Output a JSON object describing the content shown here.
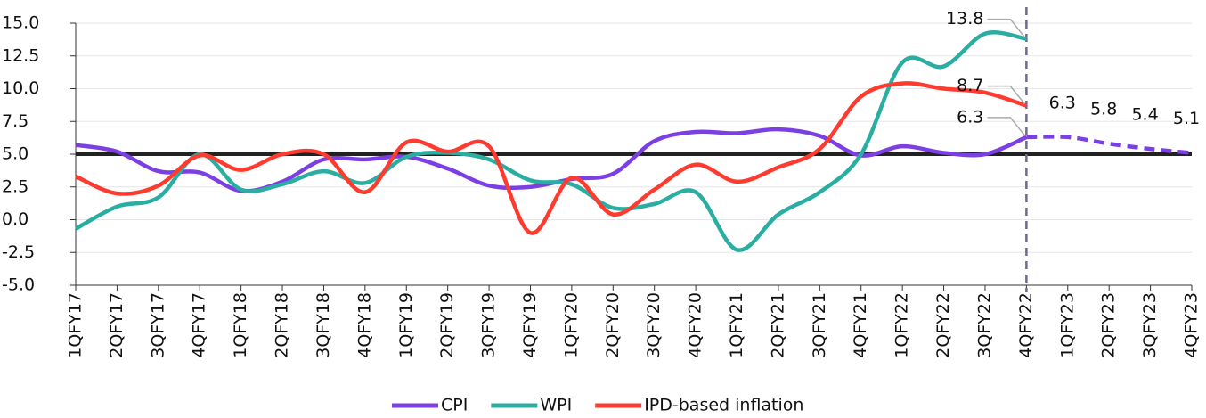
{
  "chart_data": {
    "type": "line",
    "categories": [
      "1QFY17",
      "2QFY17",
      "3QFY17",
      "4QFY17",
      "1QFY18",
      "2QFY18",
      "3QFY18",
      "4QFY18",
      "1QFY19",
      "2QFY19",
      "3QFY19",
      "4QFY19",
      "1QFY20",
      "2QFY20",
      "3QFY20",
      "4QFY20",
      "1QFY21",
      "2QFY21",
      "3QFY21",
      "4QFY21",
      "1QFY22",
      "2QFY22",
      "3QFY22",
      "4QFY22",
      "1QFY23",
      "2QFY23",
      "3QFY23",
      "4QFY23"
    ],
    "series": [
      {
        "name": "CPI",
        "color": "#7b3fe4",
        "values": [
          5.7,
          5.2,
          3.7,
          3.6,
          2.2,
          2.9,
          4.6,
          4.6,
          4.8,
          3.9,
          2.6,
          2.5,
          3.1,
          3.5,
          6.0,
          6.7,
          6.6,
          6.9,
          6.4,
          4.9,
          5.6,
          5.1,
          5.0,
          6.3,
          6.3,
          5.8,
          5.4,
          5.1
        ]
      },
      {
        "name": "WPI",
        "color": "#2aaea2",
        "values": [
          -0.7,
          1.0,
          1.7,
          5.0,
          2.3,
          2.7,
          3.7,
          2.8,
          4.8,
          5.1,
          4.6,
          3.0,
          2.7,
          0.9,
          1.2,
          2.1,
          -2.3,
          0.4,
          2.1,
          5.0,
          12.0,
          11.7,
          14.2,
          13.8,
          null,
          null,
          null,
          null
        ]
      },
      {
        "name": "IPD-based inflation",
        "color": "#ff3b30",
        "values": [
          3.3,
          2.0,
          2.6,
          4.9,
          3.8,
          5.0,
          5.0,
          2.1,
          5.9,
          5.2,
          5.6,
          -1.0,
          3.2,
          0.4,
          2.3,
          4.2,
          2.9,
          4.0,
          5.4,
          9.4,
          10.4,
          10.0,
          9.7,
          8.7,
          null,
          null,
          null,
          null
        ]
      }
    ],
    "ylim": [
      -5,
      15
    ],
    "yticks": [
      {
        "value": 15,
        "label": "15.0"
      },
      {
        "value": 12.5,
        "label": "12.5"
      },
      {
        "value": 10,
        "label": "10.0"
      },
      {
        "value": 7.5,
        "label": "7.5"
      },
      {
        "value": 5,
        "label": "5.0"
      },
      {
        "value": 2.5,
        "label": "2.5"
      },
      {
        "value": 0,
        "label": "0.0"
      },
      {
        "value": -2.5,
        "label": "-2.5"
      },
      {
        "value": -5,
        "label": "-5.0"
      }
    ],
    "grid": true,
    "reference_line": 5,
    "forecast_from": "4QFY22",
    "legend": "bottom"
  }
}
